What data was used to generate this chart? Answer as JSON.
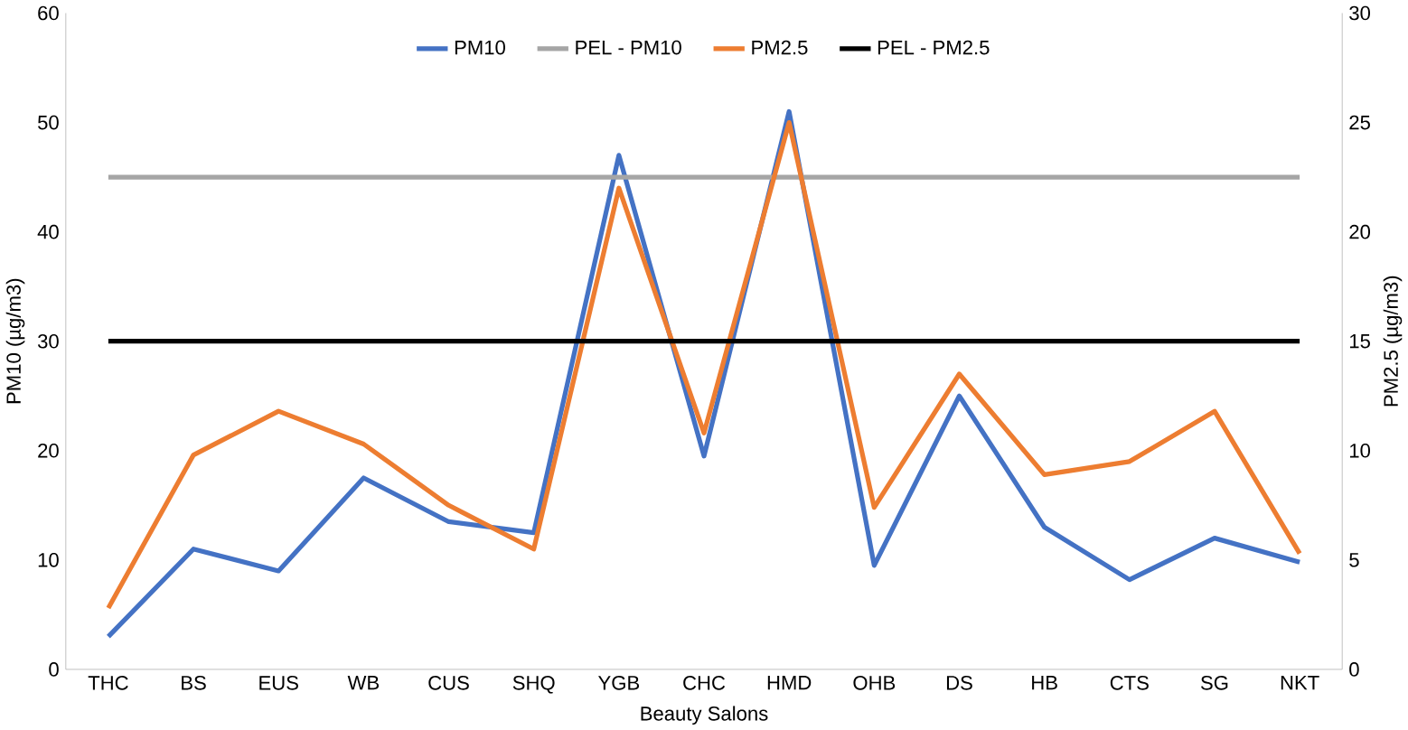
{
  "chart_data": {
    "type": "line",
    "xlabel": "Beauty Salons",
    "ylabel": "PM10 (µg/m3)",
    "y2label": "PM2.5 (µg/m3)",
    "categories": [
      "THC",
      "BS",
      "EUS",
      "WB",
      "CUS",
      "SHQ",
      "YGB",
      "CHC",
      "HMD",
      "OHB",
      "DS",
      "HB",
      "CTS",
      "SG",
      "NKT"
    ],
    "series": [
      {
        "name": "PM10",
        "color": "#4472c4",
        "values": [
          3,
          11,
          9,
          17.5,
          13.5,
          12.5,
          47,
          19.5,
          51,
          9.5,
          25,
          13,
          8.2,
          12,
          9.8
        ]
      },
      {
        "name": "PEL - PM10",
        "color": "#a5a5a5",
        "values": [
          45,
          45,
          45,
          45,
          45,
          45,
          45,
          45,
          45,
          45,
          45,
          45,
          45,
          45,
          45
        ]
      },
      {
        "name": "PM2.5",
        "color": "#ed7d31",
        "axis": "y2",
        "values": [
          2.8,
          9.8,
          11.8,
          10.3,
          7.5,
          5.5,
          22,
          10.8,
          25,
          7.4,
          13.5,
          8.9,
          9.5,
          11.8,
          5.3
        ]
      },
      {
        "name": "PEL - PM2.5",
        "color": "#000000",
        "axis": "y2",
        "values": [
          15,
          15,
          15,
          15,
          15,
          15,
          15,
          15,
          15,
          15,
          15,
          15,
          15,
          15,
          15
        ]
      }
    ],
    "ylim": [
      0,
      60
    ],
    "yticks": [
      0,
      10,
      20,
      30,
      40,
      50,
      60
    ],
    "y2lim": [
      0,
      30
    ],
    "y2ticks": [
      0,
      5,
      10,
      15,
      20,
      25,
      30
    ],
    "grid": false,
    "legend": "top"
  }
}
